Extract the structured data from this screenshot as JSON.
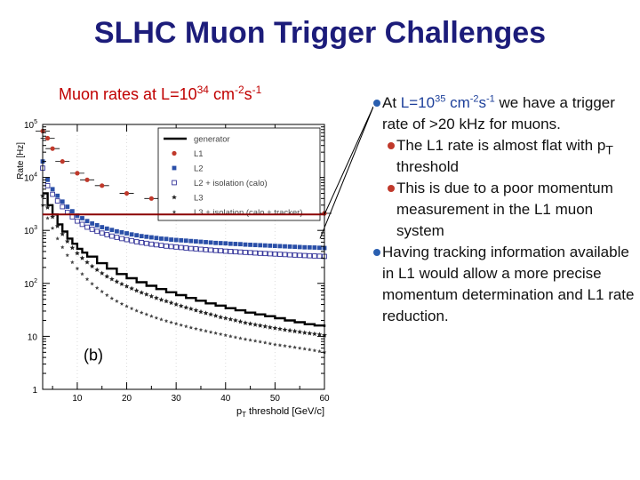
{
  "title": "SLHC Muon Trigger Challenges",
  "subtitle": {
    "prefix": "Muon rates at L=10",
    "exp1": "34",
    "mid": " cm",
    "exp2": "-2",
    "s": "s",
    "exp3": "-1"
  },
  "bullets": [
    {
      "level": 1,
      "parts": [
        "At ",
        "L=10",
        "35",
        " cm",
        "-2",
        "s",
        "-1",
        " we have a trigger rate of >20 kHz for muons."
      ]
    },
    {
      "level": 2,
      "text_a": "The L1 rate is almost flat with p",
      "sub": "T",
      "text_b": " threshold"
    },
    {
      "level": 2,
      "text": "This is due to a poor momentum measurement in the L1 muon system"
    },
    {
      "level": 1,
      "text": "Having tracking information available in L1 would allow a more precise momentum determination and L1 rate reduction."
    }
  ],
  "colors": {
    "title": "#1c1c7a",
    "subtitle": "#c00000",
    "threshold_line": "#8b0000"
  },
  "chart_data": {
    "type": "scatter",
    "ylabel": "Rate [Hz]",
    "xlabel": "p_T threshold [GeV/c]",
    "xlabel_parts": {
      "p": "p",
      "sub": "T",
      "rest": " threshold [GeV/c]"
    },
    "xlim": [
      3,
      60
    ],
    "ylim": [
      1,
      100000
    ],
    "yscale": "log",
    "xticks": [
      10,
      20,
      30,
      40,
      50,
      60
    ],
    "yticks": [
      {
        "v": 1,
        "base": "1",
        "exp": ""
      },
      {
        "v": 10,
        "base": "10",
        "exp": ""
      },
      {
        "v": 100,
        "base": "10",
        "exp": "2"
      },
      {
        "v": 1000,
        "base": "10",
        "exp": "3"
      },
      {
        "v": 10000,
        "base": "10",
        "exp": "4"
      },
      {
        "v": 100000,
        "base": "10",
        "exp": "5"
      }
    ],
    "panel_label": "(b)",
    "threshold_rate": 2000,
    "legend_position": "top-right",
    "series": [
      {
        "name": "generator",
        "style": "step",
        "color": "#000000",
        "x": [
          3,
          4,
          5,
          6,
          7,
          8,
          9,
          10,
          11,
          12,
          14,
          16,
          18,
          20,
          22,
          24,
          26,
          28,
          30,
          32,
          34,
          36,
          38,
          40,
          42,
          44,
          46,
          48,
          50,
          52,
          54,
          56,
          58,
          60
        ],
        "y": [
          5000,
          3000,
          2000,
          1300,
          950,
          700,
          560,
          450,
          380,
          320,
          240,
          190,
          150,
          125,
          105,
          90,
          78,
          68,
          60,
          53,
          47,
          42,
          38,
          34,
          31,
          28,
          26,
          24,
          22,
          20,
          18.5,
          17,
          16,
          15
        ]
      },
      {
        "name": "L1",
        "style": "marker-circle",
        "color": "#c0392b",
        "x": [
          3,
          4,
          5,
          7,
          10,
          12,
          15,
          20,
          25,
          30,
          35,
          40,
          45,
          50,
          55,
          60
        ],
        "y": [
          75000,
          55000,
          35000,
          20000,
          12000,
          9000,
          7000,
          5000,
          4000,
          3200,
          2800,
          2400,
          2300,
          2200,
          2150,
          2100
        ]
      },
      {
        "name": "L2",
        "style": "marker-square-filled",
        "color": "#2a4fa8",
        "x": [
          3,
          4,
          5,
          6,
          7,
          8,
          9,
          10,
          11,
          12,
          13,
          14,
          15,
          16,
          17,
          18,
          19,
          20,
          21,
          22,
          23,
          24,
          25,
          26,
          27,
          28,
          29,
          30,
          31,
          32,
          33,
          34,
          35,
          36,
          37,
          38,
          39,
          40,
          41,
          42,
          43,
          44,
          45,
          46,
          47,
          48,
          49,
          50,
          51,
          52,
          53,
          54,
          55,
          56,
          57,
          58,
          59,
          60
        ],
        "y": [
          20000,
          9000,
          6000,
          4500,
          3500,
          2800,
          2300,
          1900,
          1700,
          1500,
          1350,
          1250,
          1150,
          1080,
          1020,
          960,
          920,
          880,
          840,
          810,
          780,
          760,
          740,
          720,
          700,
          690,
          670,
          660,
          650,
          640,
          630,
          620,
          610,
          600,
          590,
          580,
          575,
          570,
          560,
          555,
          550,
          540,
          535,
          530,
          525,
          520,
          515,
          510,
          505,
          500,
          495,
          490,
          485,
          480,
          478,
          475,
          470,
          465
        ]
      },
      {
        "name": "L2 + isolation (calo)",
        "style": "marker-square-open",
        "color": "#333399",
        "x": [
          3,
          4,
          5,
          6,
          7,
          8,
          9,
          10,
          11,
          12,
          13,
          14,
          15,
          16,
          17,
          18,
          19,
          20,
          21,
          22,
          23,
          24,
          25,
          26,
          27,
          28,
          29,
          30,
          31,
          32,
          33,
          34,
          35,
          36,
          37,
          38,
          39,
          40,
          41,
          42,
          43,
          44,
          45,
          46,
          47,
          48,
          49,
          50,
          51,
          52,
          53,
          54,
          55,
          56,
          57,
          58,
          59,
          60
        ],
        "y": [
          15000,
          7000,
          4800,
          3600,
          2800,
          2200,
          1800,
          1500,
          1300,
          1150,
          1050,
          960,
          890,
          830,
          780,
          740,
          700,
          670,
          640,
          610,
          590,
          570,
          550,
          535,
          520,
          505,
          495,
          485,
          475,
          465,
          455,
          448,
          440,
          432,
          425,
          418,
          412,
          405,
          400,
          395,
          390,
          385,
          380,
          375,
          370,
          366,
          362,
          358,
          354,
          350,
          346,
          342,
          338,
          335,
          332,
          329,
          326,
          323
        ]
      },
      {
        "name": "L3",
        "style": "marker-star",
        "color": "#222222",
        "x": [
          3,
          4,
          5,
          6,
          7,
          8,
          9,
          10,
          11,
          12,
          13,
          14,
          15,
          16,
          17,
          18,
          19,
          20,
          21,
          22,
          23,
          24,
          25,
          26,
          27,
          28,
          29,
          30,
          31,
          32,
          33,
          34,
          35,
          36,
          37,
          38,
          39,
          40,
          41,
          42,
          43,
          44,
          45,
          46,
          47,
          48,
          49,
          50,
          51,
          52,
          53,
          54,
          55,
          56,
          57,
          58,
          59,
          60
        ],
        "y": [
          4500,
          2700,
          1800,
          1200,
          850,
          620,
          470,
          370,
          300,
          250,
          210,
          180,
          155,
          135,
          120,
          108,
          97,
          88,
          80,
          73,
          67,
          62,
          57,
          53,
          49,
          46,
          43,
          40,
          37.5,
          35,
          33,
          31,
          29,
          27.5,
          26,
          24.5,
          23,
          22,
          21,
          20,
          19,
          18,
          17.3,
          16.6,
          16,
          15.4,
          14.8,
          14.3,
          13.8,
          13.3,
          12.9,
          12.5,
          12.1,
          11.7,
          11.4,
          11.1,
          10.8,
          10.5
        ]
      },
      {
        "name": "L3 + isolation (calo + tracker)",
        "style": "marker-star-small",
        "color": "#444444",
        "x": [
          3,
          4,
          5,
          6,
          7,
          8,
          9,
          10,
          11,
          12,
          13,
          14,
          15,
          16,
          17,
          18,
          19,
          20,
          21,
          22,
          23,
          24,
          25,
          26,
          27,
          28,
          29,
          30,
          31,
          32,
          33,
          34,
          35,
          36,
          37,
          38,
          39,
          40,
          41,
          42,
          43,
          44,
          45,
          46,
          47,
          48,
          49,
          50,
          51,
          52,
          53,
          54,
          55,
          56,
          57,
          58,
          59,
          60
        ],
        "y": [
          3000,
          1700,
          1100,
          700,
          480,
          340,
          250,
          190,
          150,
          120,
          98,
          82,
          70,
          60,
          52,
          46,
          41,
          37,
          33.5,
          30.5,
          28,
          26,
          24,
          22.3,
          20.8,
          19.5,
          18.3,
          17.3,
          16.3,
          15.4,
          14.6,
          13.9,
          13.2,
          12.6,
          12,
          11.5,
          11,
          10.5,
          10,
          9.6,
          9.2,
          8.8,
          8.5,
          8.2,
          7.9,
          7.6,
          7.3,
          7,
          6.8,
          6.6,
          6.4,
          6.2,
          6,
          5.8,
          5.6,
          5.4,
          5.2,
          5
        ]
      }
    ]
  }
}
